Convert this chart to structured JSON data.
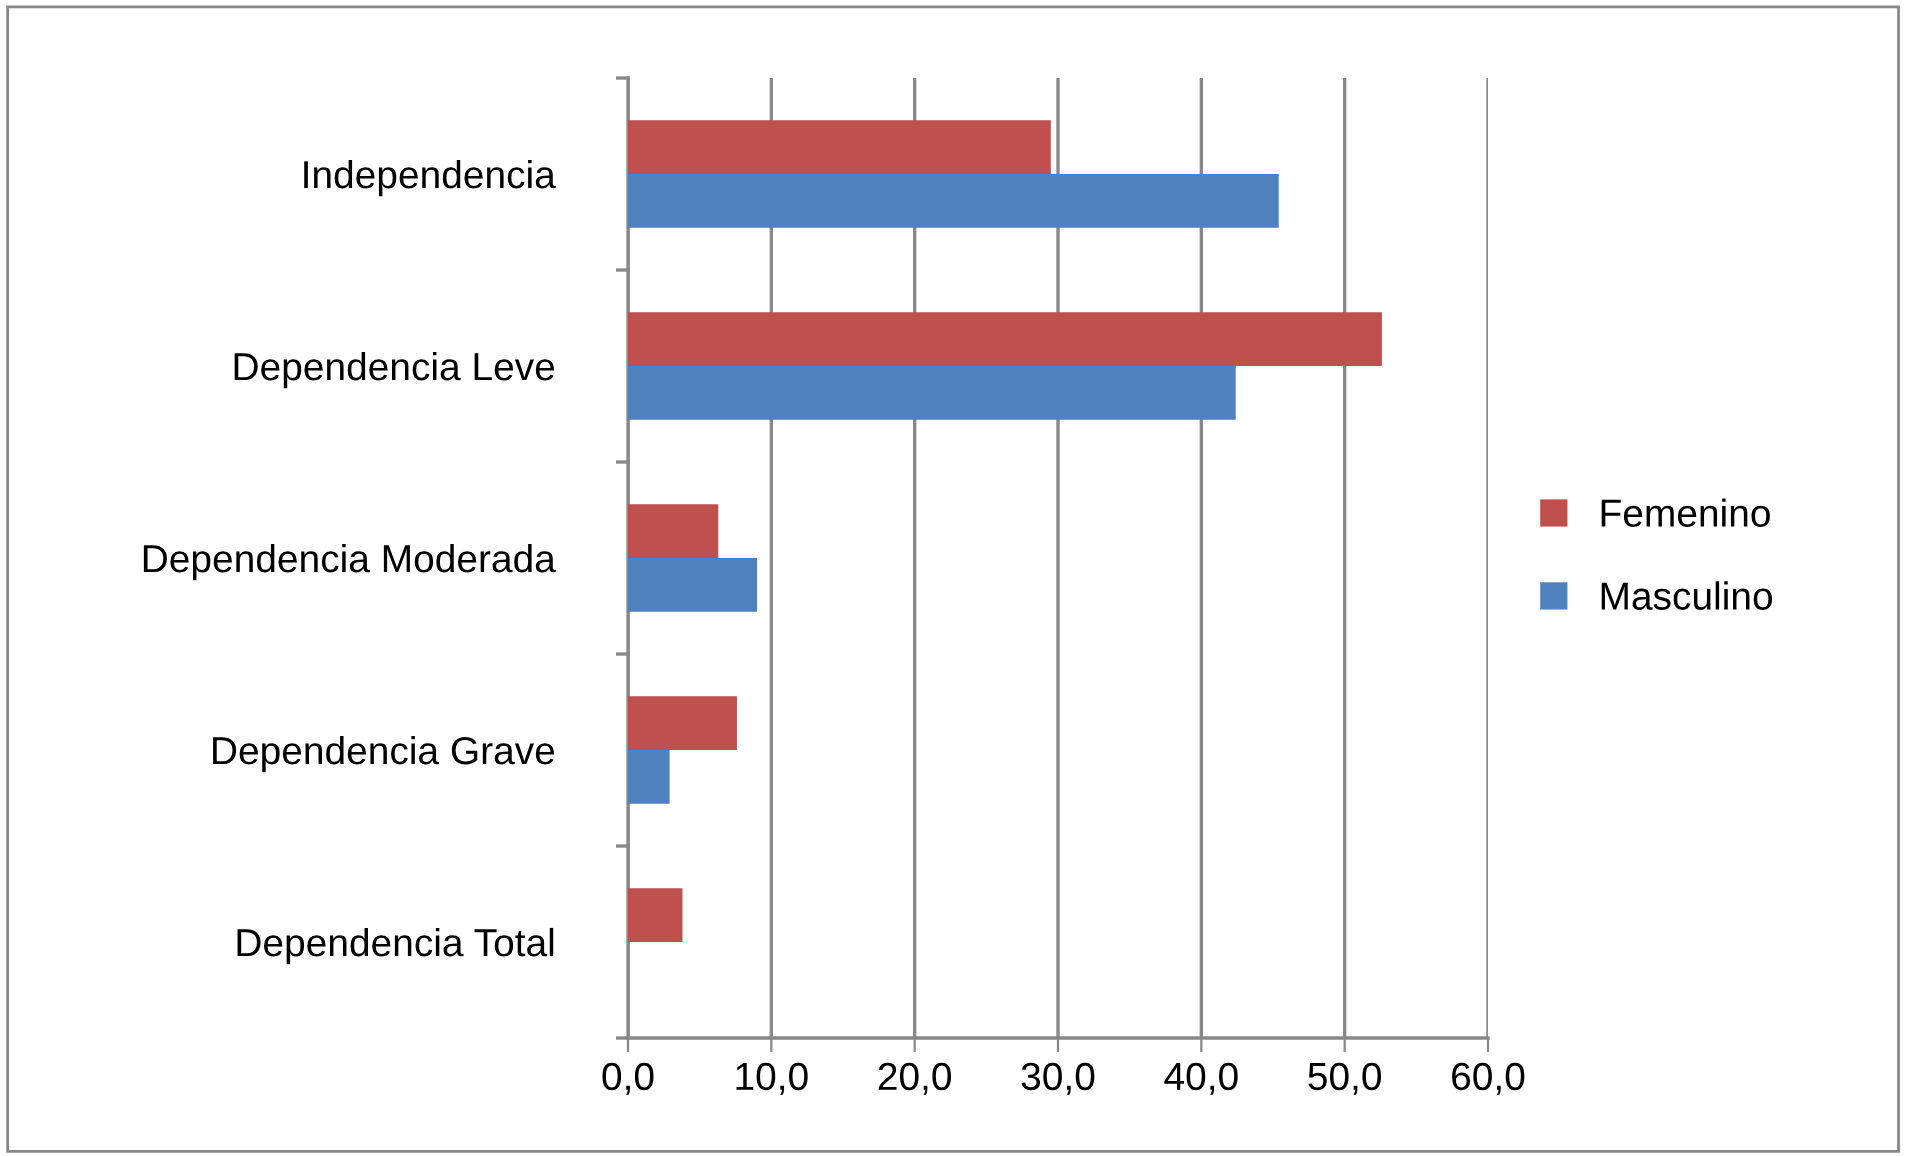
{
  "chart_data": {
    "type": "bar",
    "orientation": "horizontal",
    "categories": [
      "Independencia",
      "Dependencia Leve",
      "Dependencia Moderada",
      "Dependencia Grave",
      "Dependencia Total"
    ],
    "series": [
      {
        "name": "Femenino",
        "color": "#c0504d",
        "values": [
          29.5,
          52.6,
          6.3,
          7.6,
          3.8
        ]
      },
      {
        "name": "Masculino",
        "color": "#4f81bd",
        "values": [
          45.4,
          42.4,
          9.0,
          2.9,
          null
        ]
      }
    ],
    "xlim": [
      0,
      60
    ],
    "xticks": [
      {
        "value": 0,
        "label": "0,0"
      },
      {
        "value": 10,
        "label": "10,0"
      },
      {
        "value": 20,
        "label": "20,0"
      },
      {
        "value": 30,
        "label": "30,0"
      },
      {
        "value": 40,
        "label": "40,0"
      },
      {
        "value": 50,
        "label": "50,0"
      },
      {
        "value": 60,
        "label": "60,0"
      }
    ],
    "grid": "x",
    "legend": "right"
  }
}
